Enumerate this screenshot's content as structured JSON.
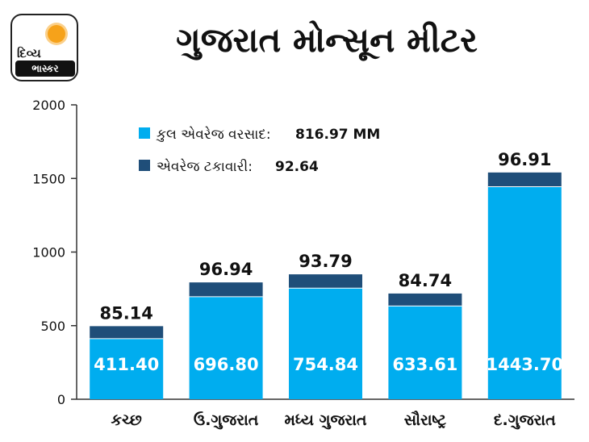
{
  "header": {
    "logo_line1": "દિવ્ય",
    "logo_line2": "ભાસ્કર",
    "title": "ગુજરાત મોન્સૂન મીટર"
  },
  "legend": {
    "rain_label": "કુલ એવરેજ વરસાદ:",
    "rain_value": "816.97 MM",
    "pct_label": "એવરેજ ટકાવારી:",
    "pct_value": "92.64"
  },
  "colors": {
    "rain": "#00adef",
    "pct": "#1f4e79",
    "axis": "#333333"
  },
  "chart_data": {
    "type": "bar",
    "stacked": true,
    "categories": [
      "કચ્છ",
      "ઉ.ગુજરાત",
      "મધ્ય ગુજરાત",
      "સૌરાષ્ટ્ર",
      "દ.ગુજરાત"
    ],
    "series": [
      {
        "name": "કુલ એવરેજ વરસાદ",
        "values": [
          411.4,
          696.8,
          754.84,
          633.61,
          1443.7
        ],
        "labels": [
          "411.40",
          "696.80",
          "754.84",
          "633.61",
          "1443.70"
        ]
      },
      {
        "name": "એવરેજ ટકાવારી",
        "values": [
          85.14,
          96.94,
          93.79,
          84.74,
          96.91
        ],
        "labels": [
          "85.14",
          "96.94",
          "93.79",
          "84.74",
          "96.91"
        ]
      }
    ],
    "ylim": [
      0,
      2000
    ],
    "yticks": [
      0,
      500,
      1000,
      1500,
      2000
    ],
    "ytick_labels": [
      "0",
      "500",
      "1000",
      "1500",
      "2000"
    ],
    "grid": false
  }
}
